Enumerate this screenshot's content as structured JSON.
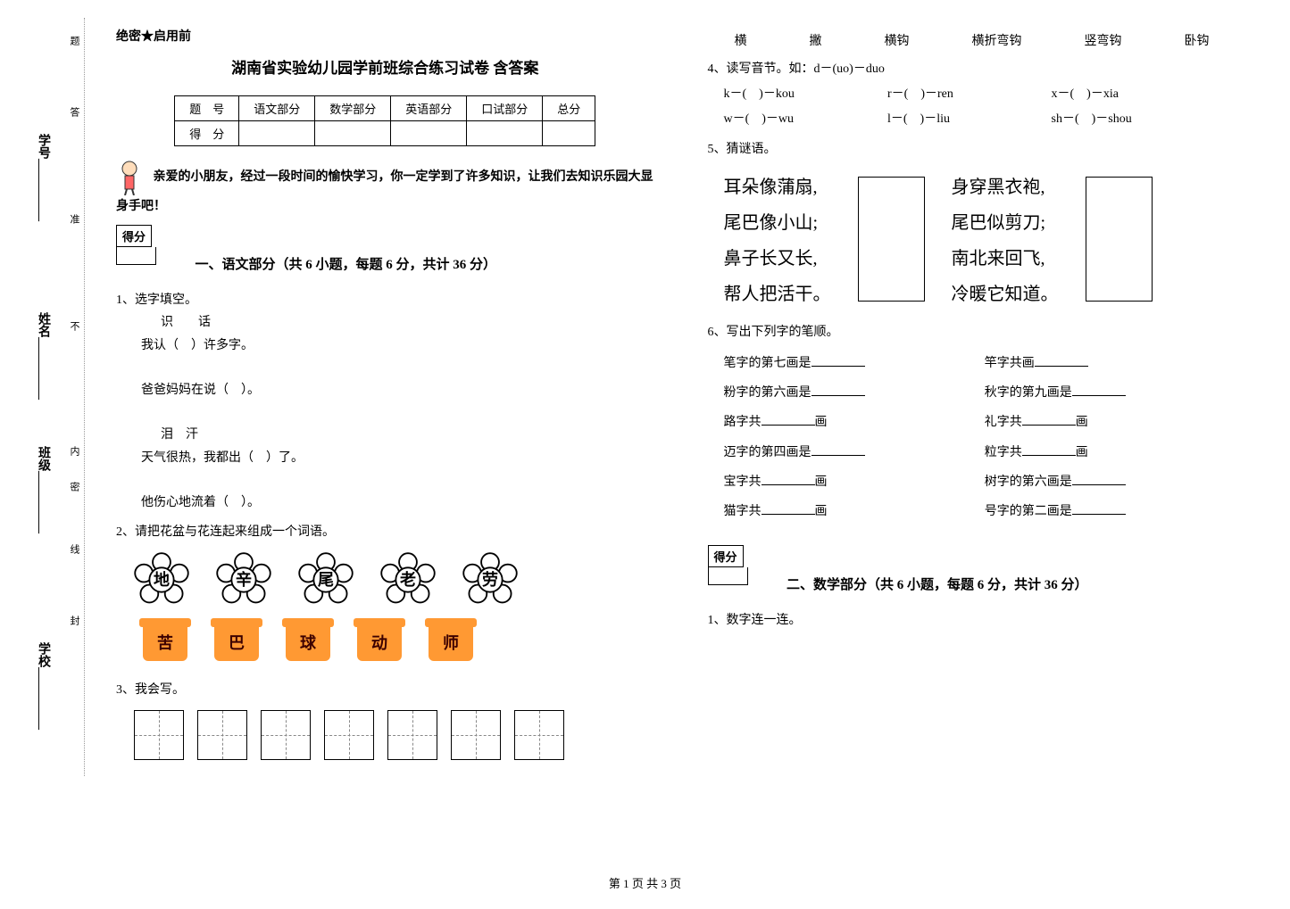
{
  "binding": {
    "school": "学校__________",
    "class": "班级__________",
    "name": "姓名__________",
    "id": "学号__________",
    "inner": "内",
    "feng": "封",
    "mi": "密",
    "xian": "线",
    "bu": "不",
    "zhun": "准",
    "da": "答",
    "ti": "题"
  },
  "header": {
    "secret": "绝密★启用前",
    "title": "湖南省实验幼儿园学前班综合练习试卷 含答案"
  },
  "score_table": {
    "row1": [
      "题　号",
      "语文部分",
      "数学部分",
      "英语部分",
      "口试部分",
      "总分"
    ],
    "row2": [
      "得　分",
      "",
      "",
      "",
      "",
      ""
    ]
  },
  "intro": "亲爱的小朋友，经过一段时间的愉快学习，你一定学到了许多知识，让我们去知识乐园大显身手吧！",
  "score_label": "得分",
  "section1": {
    "title": "一、语文部分（共 6 小题，每题 6 分，共计 36 分）",
    "q1": {
      "label": "1、选字填空。",
      "pair1": "识　　话",
      "line1": "我认（　）许多字。",
      "line2": "爸爸妈妈在说（　）。",
      "pair2": "泪　汗",
      "line3": "天气很热，我都出（　）了。",
      "line4": "他伤心地流着（　）。"
    },
    "q2": {
      "label": "2、请把花盆与花连起来组成一个词语。",
      "flowers": [
        "地",
        "辛",
        "尾",
        "老",
        "劳"
      ],
      "pots": [
        "苦",
        "巴",
        "球",
        "动",
        "师"
      ]
    },
    "q3": {
      "label": "3、我会写。"
    },
    "strokes": [
      "横",
      "撇",
      "横钩",
      "横折弯钩",
      "竖弯钩",
      "卧钩"
    ],
    "q4": {
      "label": "4、读写音节。如：d－(uo)－duo",
      "lines": [
        [
          "k－(　)－kou",
          "r－(　)－ren",
          "x－(　)－xia"
        ],
        [
          "w－(　)－wu",
          "l－(　)－liu",
          "sh－(　)－shou"
        ]
      ]
    },
    "q5": {
      "label": "5、猜谜语。",
      "riddle1": [
        "耳朵像蒲扇,",
        "尾巴像小山;",
        "鼻子长又长,",
        "帮人把活干。"
      ],
      "riddle2": [
        "身穿黑衣袍,",
        "尾巴似剪刀;",
        "南北来回飞,",
        "冷暖它知道。"
      ]
    },
    "q6": {
      "label": "6、写出下列字的笔顺。",
      "items": [
        [
          "笔字的第七画是",
          "竿字共画"
        ],
        [
          "粉字的第六画是",
          "秋字的第九画是"
        ],
        [
          "路字共",
          "画",
          "礼字共",
          "画"
        ],
        [
          "迈字的第四画是",
          "粒字共",
          "画"
        ],
        [
          "宝字共",
          "画",
          "树字的第六画是"
        ],
        [
          "猫字共",
          "画",
          "号字的第二画是"
        ]
      ]
    }
  },
  "section2": {
    "title": "二、数学部分（共 6 小题，每题 6 分，共计 36 分）",
    "q1": "1、数字连一连。"
  },
  "footer": "第 1 页 共 3 页"
}
